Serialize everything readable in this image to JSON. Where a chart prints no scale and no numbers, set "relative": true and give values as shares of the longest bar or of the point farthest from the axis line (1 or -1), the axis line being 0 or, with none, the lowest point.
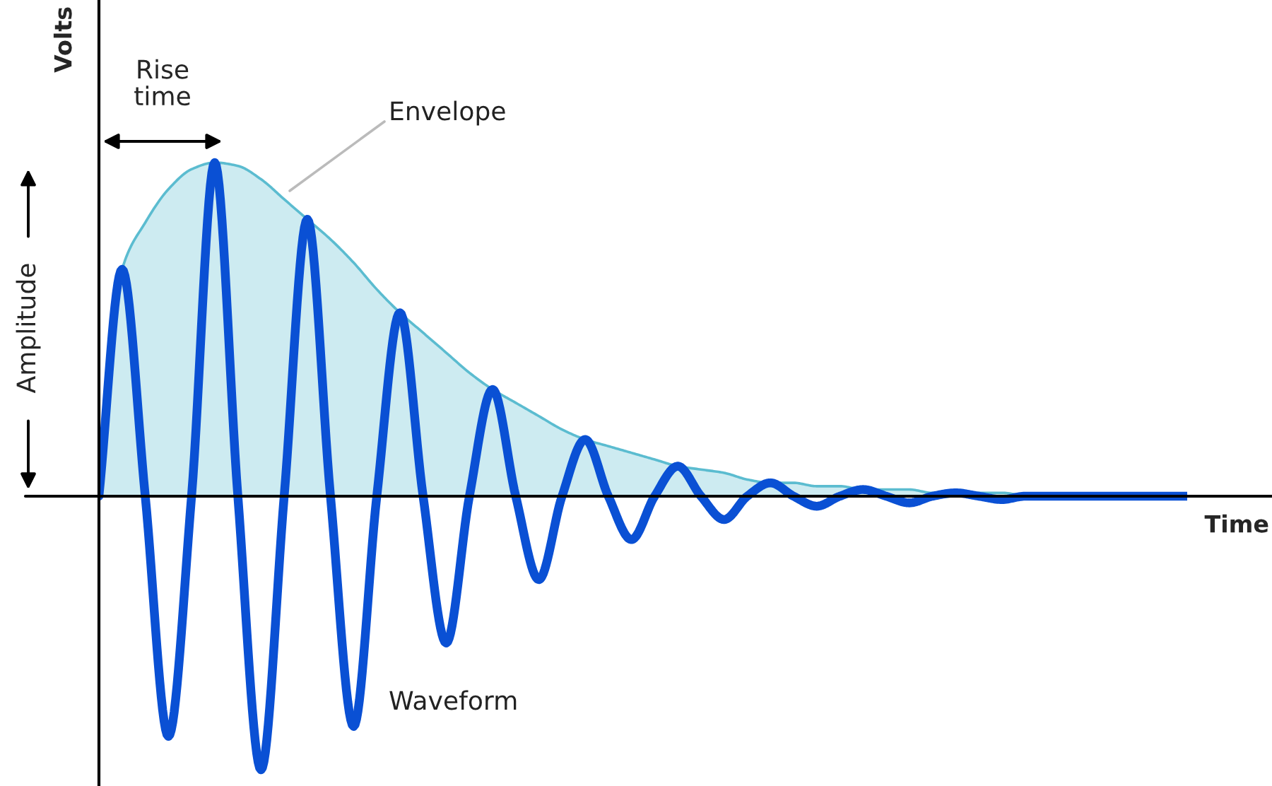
{
  "chart_data": {
    "type": "line",
    "relative": true,
    "xlabel": "Time",
    "ylabel": "Volts",
    "legend": false,
    "grid": false,
    "categories": [
      null,
      null,
      null,
      null,
      null,
      null,
      null,
      null,
      null,
      null,
      null,
      null,
      null,
      null,
      null,
      null,
      null,
      null,
      null,
      null,
      null,
      null,
      null,
      null,
      null,
      null,
      null,
      null,
      null,
      null,
      null,
      null,
      null,
      null,
      null,
      null,
      null,
      null,
      null,
      null,
      null,
      null,
      null,
      null,
      null,
      null,
      null,
      null
    ],
    "series": [
      {
        "name": "Envelope",
        "type": "area",
        "color": "#5bbcd0",
        "values": [
          0,
          0.68,
          0.82,
          0.92,
          0.98,
          1.0,
          0.99,
          0.95,
          0.89,
          0.83,
          0.77,
          0.7,
          0.62,
          0.55,
          0.49,
          0.43,
          0.37,
          0.32,
          0.28,
          0.24,
          0.2,
          0.17,
          0.15,
          0.13,
          0.11,
          0.09,
          0.08,
          0.07,
          0.05,
          0.04,
          0.04,
          0.03,
          0.03,
          0.02,
          0.02,
          0.02,
          0.01,
          0.01,
          0.01,
          0.01,
          0,
          null,
          null,
          null,
          null,
          null,
          null,
          null
        ]
      },
      {
        "name": "Waveform",
        "type": "line",
        "color": "#0a50d4",
        "values": [
          0,
          0.68,
          0,
          -0.72,
          0,
          1.0,
          0,
          -0.82,
          0,
          0.83,
          0,
          -0.69,
          0,
          0.55,
          0,
          -0.44,
          0,
          0.32,
          0,
          -0.25,
          0,
          0.17,
          0,
          -0.13,
          0,
          0.09,
          0,
          -0.07,
          0,
          0.04,
          0,
          -0.03,
          0,
          0.02,
          0,
          -0.02,
          0,
          0.01,
          0,
          -0.01,
          0,
          0,
          0,
          0,
          0,
          0,
          0,
          0
        ]
      }
    ],
    "annotations": [
      "Rise time",
      "Amplitude"
    ]
  }
}
